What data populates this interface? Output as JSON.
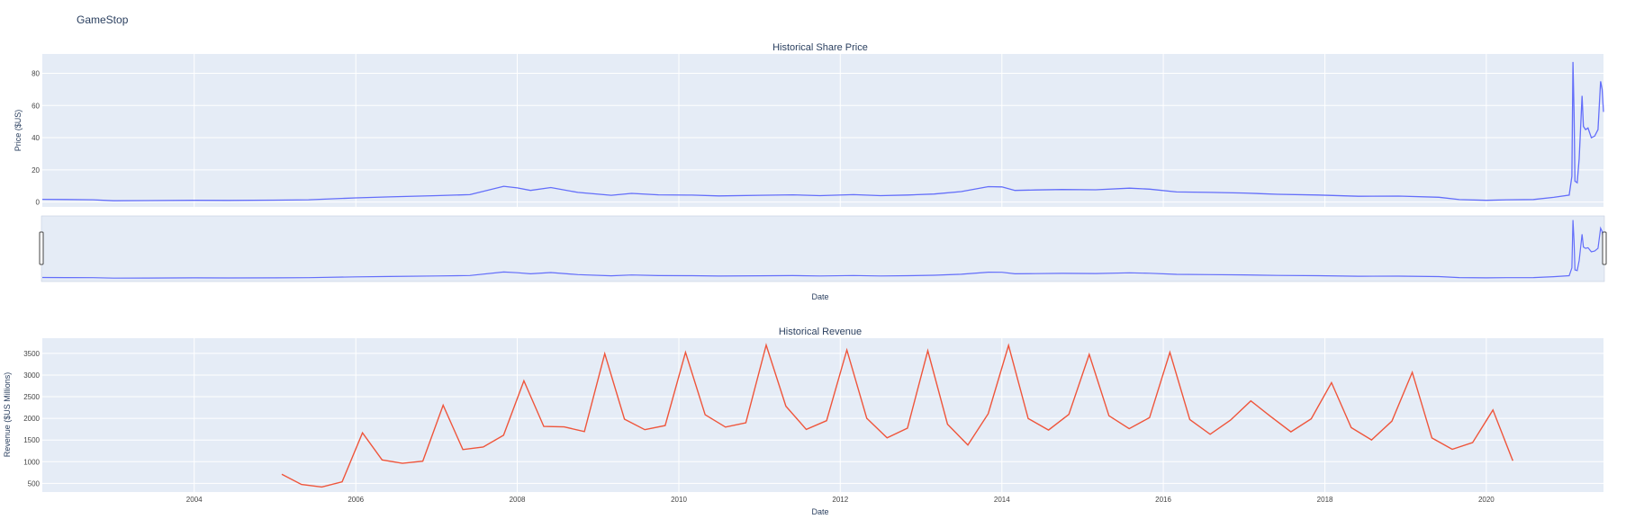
{
  "figure": {
    "title": "GameStop"
  },
  "chart_data": [
    {
      "type": "line",
      "title": "Historical Share Price",
      "xlabel": "Date",
      "ylabel": "Price ($US)",
      "xlim": [
        "2002-02-13",
        "2021-06-14"
      ],
      "ylim": [
        -3,
        92
      ],
      "yticks": [
        0,
        20,
        40,
        60,
        80
      ],
      "grid": true,
      "rangeslider": true,
      "color": "#636efa",
      "series": [
        {
          "x": [
            "2002-02-13",
            "2002-06-01",
            "2002-10-01",
            "2003-01-01",
            "2003-06-01",
            "2004-01-01",
            "2004-06-01",
            "2005-01-01",
            "2005-06-01",
            "2006-01-01",
            "2006-06-01",
            "2007-01-01",
            "2007-06-01",
            "2007-11-01",
            "2008-01-01",
            "2008-03-01",
            "2008-06-01",
            "2008-10-01",
            "2009-03-01",
            "2009-06-01",
            "2009-10-01",
            "2010-03-01",
            "2010-07-01",
            "2011-01-01",
            "2011-06-01",
            "2011-10-01",
            "2012-03-01",
            "2012-07-01",
            "2012-11-01",
            "2013-03-01",
            "2013-07-01",
            "2013-11-01",
            "2014-01-01",
            "2014-03-01",
            "2014-06-01",
            "2014-10-01",
            "2015-03-01",
            "2015-08-01",
            "2015-11-01",
            "2016-03-01",
            "2016-08-01",
            "2017-01-01",
            "2017-06-01",
            "2017-12-01",
            "2018-06-01",
            "2018-12-01",
            "2019-06-01",
            "2019-09-01",
            "2020-01-01",
            "2020-04-01",
            "2020-08-01",
            "2020-11-01",
            "2021-01-10",
            "2021-01-22",
            "2021-01-27",
            "2021-02-01",
            "2021-02-05",
            "2021-02-15",
            "2021-02-24",
            "2021-03-09",
            "2021-03-15",
            "2021-03-25",
            "2021-04-05",
            "2021-04-20",
            "2021-05-05",
            "2021-05-20",
            "2021-06-01",
            "2021-06-08",
            "2021-06-14"
          ],
          "y": [
            1.7,
            1.6,
            1.4,
            0.8,
            0.9,
            1.1,
            1.0,
            1.2,
            1.4,
            2.6,
            3.2,
            4.0,
            4.6,
            9.8,
            8.8,
            7.2,
            9.0,
            6.0,
            4.2,
            5.4,
            4.5,
            4.3,
            3.8,
            4.2,
            4.5,
            4.0,
            4.6,
            4.0,
            4.4,
            5.0,
            6.5,
            9.6,
            9.4,
            7.2,
            7.5,
            7.8,
            7.6,
            8.6,
            8.0,
            6.3,
            6.0,
            5.6,
            4.8,
            4.4,
            3.6,
            3.7,
            3.0,
            1.5,
            1.1,
            1.4,
            1.6,
            2.9,
            4.3,
            16.0,
            87.0,
            56.0,
            13.0,
            12.0,
            27.0,
            66.0,
            47.0,
            45.0,
            46.0,
            40.0,
            41.0,
            45.0,
            75.0,
            70.0,
            56.0
          ]
        }
      ]
    },
    {
      "type": "line",
      "title": "Historical Revenue",
      "xlabel": "Date",
      "ylabel": "Revenue ($US Millions)",
      "xlim": [
        "2002-02-13",
        "2021-06-14"
      ],
      "ylim": [
        300,
        3850
      ],
      "yticks": [
        500,
        1000,
        1500,
        2000,
        2500,
        3000,
        3500
      ],
      "xticks": [
        "2004",
        "2006",
        "2008",
        "2010",
        "2012",
        "2014",
        "2016",
        "2018",
        "2020"
      ],
      "grid": true,
      "color": "#ef553b",
      "series": [
        {
          "x": [
            "2005-01-31",
            "2005-04-30",
            "2005-07-31",
            "2005-10-31",
            "2006-01-31",
            "2006-04-30",
            "2006-07-31",
            "2006-10-31",
            "2007-01-31",
            "2007-04-30",
            "2007-07-31",
            "2007-10-31",
            "2008-01-31",
            "2008-04-30",
            "2008-07-31",
            "2008-10-31",
            "2009-01-31",
            "2009-04-30",
            "2009-07-31",
            "2009-10-31",
            "2010-01-31",
            "2010-04-30",
            "2010-07-31",
            "2010-10-31",
            "2011-01-31",
            "2011-04-30",
            "2011-07-31",
            "2011-10-31",
            "2012-01-31",
            "2012-04-30",
            "2012-07-31",
            "2012-10-31",
            "2013-01-31",
            "2013-04-30",
            "2013-07-31",
            "2013-10-31",
            "2014-01-31",
            "2014-04-30",
            "2014-07-31",
            "2014-10-31",
            "2015-01-31",
            "2015-04-30",
            "2015-07-31",
            "2015-10-31",
            "2016-01-31",
            "2016-04-30",
            "2016-07-31",
            "2016-10-31",
            "2017-01-31",
            "2017-04-30",
            "2017-07-31",
            "2017-10-31",
            "2018-01-31",
            "2018-04-30",
            "2018-07-31",
            "2018-10-31",
            "2019-01-31",
            "2019-04-30",
            "2019-07-31",
            "2019-10-31",
            "2020-01-31",
            "2020-04-30"
          ],
          "y": [
            709,
            475,
            417,
            534,
            1667,
            1041,
            963,
            1012,
            2304,
            1279,
            1338,
            1611,
            2866,
            1814,
            1804,
            1696,
            3492,
            1981,
            1739,
            1835,
            3524,
            2083,
            1799,
            1899,
            3693,
            2281,
            1744,
            1947,
            3579,
            2002,
            1550,
            1773,
            3562,
            1865,
            1384,
            2107,
            3684,
            1996,
            1731,
            2092,
            3476,
            2061,
            1762,
            2016,
            3525,
            1972,
            1632,
            1959,
            2403,
            2046,
            1688,
            1989,
            2825,
            1786,
            1501,
            1935,
            3063,
            1548,
            1286,
            1439,
            2194,
            1021
          ]
        }
      ]
    }
  ]
}
